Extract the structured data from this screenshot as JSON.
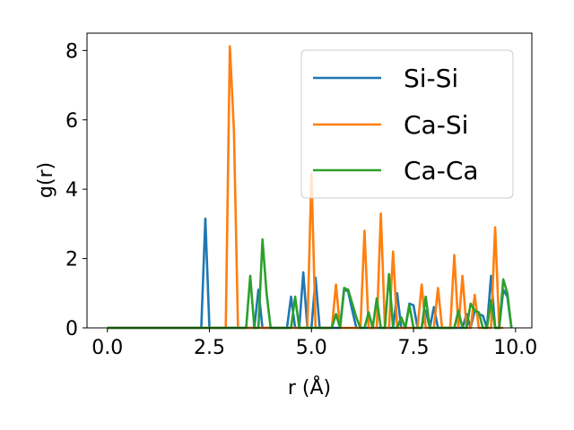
{
  "chart_data": {
    "type": "line",
    "xlabel": "r (Å)",
    "ylabel": "g(r)",
    "xlim": [
      -0.5,
      10.4
    ],
    "ylim": [
      0,
      8.5
    ],
    "xticks": [
      0.0,
      2.5,
      5.0,
      7.5,
      10.0
    ],
    "xtick_labels": [
      "0.0",
      "2.5",
      "5.0",
      "7.5",
      "10.0"
    ],
    "yticks": [
      0,
      2,
      4,
      6,
      8
    ],
    "ytick_labels": [
      "0",
      "2",
      "4",
      "6",
      "8"
    ],
    "grid": false,
    "legend_position": "top-right",
    "series": [
      {
        "name": "Si-Si",
        "color": "#1f77b4",
        "x": [
          0.0,
          2.3,
          2.4,
          2.5,
          3.6,
          3.7,
          3.8,
          4.4,
          4.5,
          4.6,
          4.7,
          4.8,
          4.9,
          5.0,
          5.1,
          5.2,
          5.3,
          5.7,
          5.8,
          5.9,
          6.0,
          6.1,
          7.0,
          7.1,
          7.2,
          7.3,
          7.4,
          7.5,
          7.6,
          7.7,
          7.8,
          7.9,
          8.0,
          8.1,
          8.2,
          8.3,
          8.7,
          8.8,
          8.9,
          9.0,
          9.1,
          9.2,
          9.3,
          9.4,
          9.5,
          9.6,
          9.7,
          9.8,
          9.9
        ],
        "y": [
          0.0,
          0.0,
          3.15,
          0.0,
          0.0,
          1.1,
          0.0,
          0.0,
          0.9,
          0.0,
          0.0,
          1.6,
          0.0,
          0.0,
          1.45,
          0.0,
          0.0,
          0.0,
          1.1,
          1.05,
          0.5,
          0.0,
          0.0,
          1.0,
          0.0,
          0.0,
          0.7,
          0.65,
          0.0,
          0.0,
          0.5,
          0.0,
          0.6,
          0.0,
          0.0,
          0.0,
          0.0,
          0.4,
          0.0,
          0.5,
          0.4,
          0.35,
          0.0,
          1.5,
          0.0,
          0.0,
          1.1,
          0.9,
          0.0
        ]
      },
      {
        "name": "Ca-Si",
        "color": "#ff7f0e",
        "x": [
          0.0,
          2.9,
          3.0,
          3.1,
          3.2,
          4.9,
          5.0,
          5.1,
          5.5,
          5.6,
          5.7,
          6.2,
          6.3,
          6.4,
          6.6,
          6.7,
          6.8,
          6.9,
          7.0,
          7.1,
          7.2,
          7.6,
          7.7,
          7.8,
          8.0,
          8.1,
          8.2,
          8.4,
          8.5,
          8.6,
          8.7,
          8.8,
          8.9,
          9.0,
          9.1,
          9.4,
          9.5,
          9.6,
          9.7
        ],
        "y": [
          0.0,
          0.0,
          8.12,
          5.7,
          0.0,
          0.0,
          4.45,
          0.0,
          0.0,
          1.25,
          0.0,
          0.0,
          2.8,
          0.0,
          0.0,
          3.3,
          0.0,
          0.0,
          2.2,
          0.0,
          0.0,
          0.0,
          1.25,
          0.0,
          0.0,
          1.15,
          0.0,
          0.0,
          2.1,
          0.0,
          1.5,
          0.0,
          0.0,
          0.95,
          0.0,
          0.0,
          2.9,
          0.0,
          0.0
        ]
      },
      {
        "name": "Ca-Ca",
        "color": "#2ca02c",
        "x": [
          0.0,
          3.4,
          3.5,
          3.6,
          3.7,
          3.8,
          3.9,
          4.0,
          4.5,
          4.6,
          4.7,
          5.5,
          5.6,
          5.7,
          5.8,
          5.9,
          6.0,
          6.1,
          6.2,
          6.3,
          6.4,
          6.5,
          6.6,
          6.7,
          6.8,
          6.9,
          7.0,
          7.1,
          7.2,
          7.3,
          7.4,
          7.5,
          7.6,
          7.7,
          7.8,
          7.9,
          8.0,
          8.1,
          8.5,
          8.6,
          8.7,
          8.8,
          8.9,
          9.0,
          9.1,
          9.2,
          9.3,
          9.4,
          9.5,
          9.6,
          9.7,
          9.8,
          9.9
        ],
        "y": [
          0.0,
          0.0,
          1.5,
          0.0,
          0.0,
          2.55,
          1.0,
          0.0,
          0.0,
          0.9,
          0.0,
          0.0,
          0.4,
          0.0,
          1.15,
          1.1,
          0.7,
          0.3,
          0.0,
          0.0,
          0.45,
          0.0,
          0.85,
          0.0,
          0.0,
          1.55,
          0.0,
          0.0,
          0.3,
          0.0,
          0.65,
          0.0,
          0.0,
          0.0,
          0.9,
          0.0,
          0.0,
          0.0,
          0.0,
          0.5,
          0.0,
          0.0,
          0.7,
          0.5,
          0.45,
          0.0,
          0.0,
          0.8,
          0.0,
          0.0,
          1.4,
          1.0,
          0.0
        ]
      }
    ]
  }
}
